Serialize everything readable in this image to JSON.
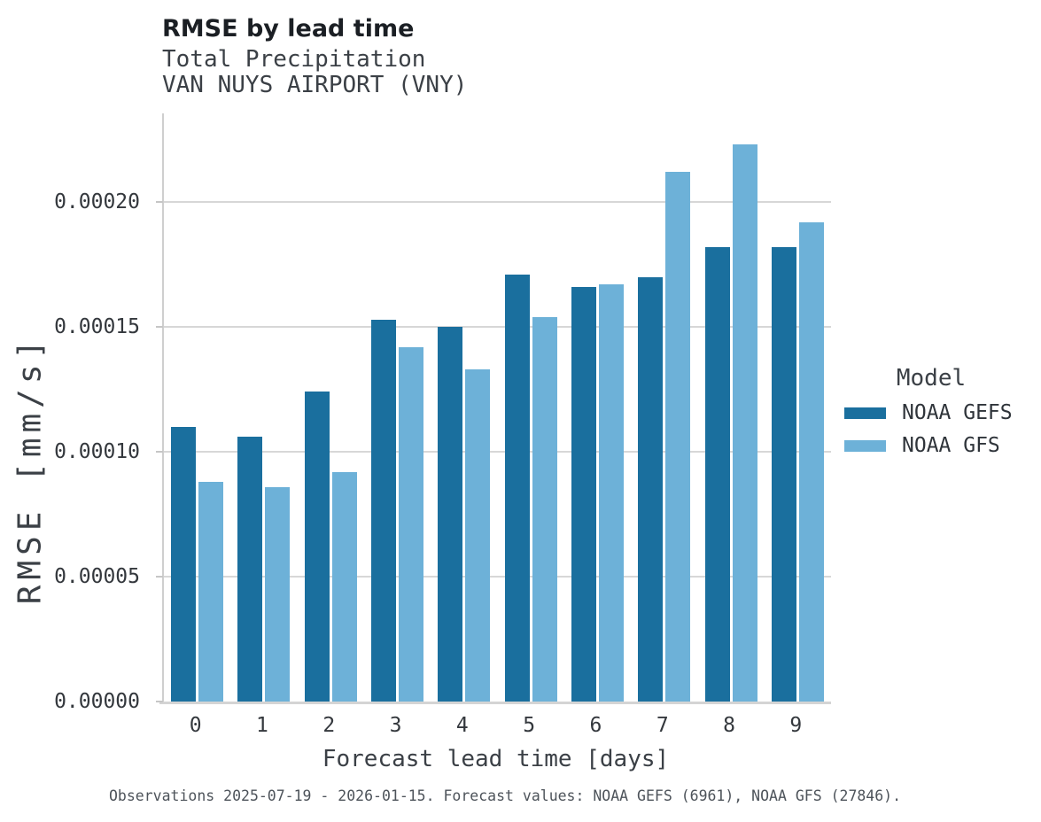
{
  "header": {
    "title": "RMSE by lead time",
    "subtitle1": "Total Precipitation",
    "subtitle2": "VAN NUYS AIRPORT (VNY)"
  },
  "caption": "Observations 2025-07-19 - 2026-01-15. Forecast values: NOAA GEFS (6961), NOAA GFS (27846).",
  "legend": {
    "title": "Model",
    "items": [
      "NOAA GEFS",
      "NOAA GFS"
    ]
  },
  "colors": {
    "gefs_dark_blue": "#1a6f9e",
    "gfs_light_blue": "#6db1d8",
    "gridline": "#d7d7d7",
    "axis": "#cfcfcf",
    "title_text": "#1b1f24",
    "label_text": "#3b4046",
    "tick_text": "#34383d",
    "caption_text": "#4d535a"
  },
  "chart_data": {
    "type": "bar",
    "title": "RMSE by lead time",
    "subtitle": [
      "Total Precipitation",
      "VAN NUYS AIRPORT (VNY)"
    ],
    "xlabel": "Forecast lead time [days]",
    "ylabel": "RMSE [mm/s]",
    "categories": [
      "0",
      "1",
      "2",
      "3",
      "4",
      "5",
      "6",
      "7",
      "8",
      "9"
    ],
    "series": [
      {
        "name": "NOAA GEFS",
        "color": "#1a6f9e",
        "values": [
          0.00011,
          0.000106,
          0.000124,
          0.000153,
          0.00015,
          0.000171,
          0.000166,
          0.00017,
          0.000182,
          0.000182
        ]
      },
      {
        "name": "NOAA GFS",
        "color": "#6db1d8",
        "values": [
          8.8e-05,
          8.6e-05,
          9.2e-05,
          0.000142,
          0.000133,
          0.000154,
          0.000167,
          0.000212,
          0.000223,
          0.000192
        ]
      }
    ],
    "ylim": [
      0,
      0.00023546
    ],
    "yticks": [
      0,
      5e-05,
      0.0001,
      0.00015,
      0.0002
    ],
    "ytick_labels": [
      "0.00000",
      "0.00005",
      "0.00010",
      "0.00015",
      "0.00020"
    ],
    "grid": true,
    "legend_title": "Model",
    "legend_position": "right"
  }
}
